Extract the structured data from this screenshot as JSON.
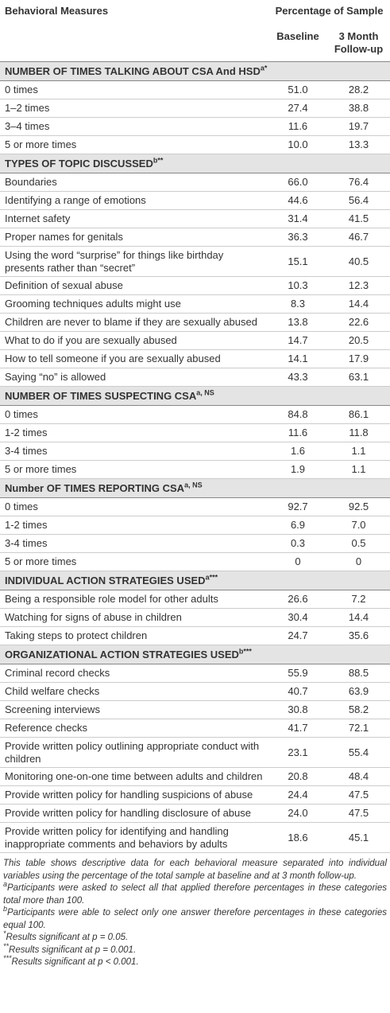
{
  "header": {
    "measure": "Behavioral Measures",
    "percentage": "Percentage of Sample",
    "baseline": "Baseline",
    "followup": "3 Month Follow-up"
  },
  "sections": [
    {
      "title": "NUMBER OF TIMES TALKING ABOUT CSA And HSD",
      "sup": "a*",
      "rows": [
        [
          "0 times",
          "51.0",
          "28.2"
        ],
        [
          "1–2 times",
          "27.4",
          "38.8"
        ],
        [
          "3–4 times",
          "11.6",
          "19.7"
        ],
        [
          "5 or more times",
          "10.0",
          "13.3"
        ]
      ]
    },
    {
      "title": "TYPES OF TOPIC DISCUSSED",
      "sup": "b**",
      "rows": [
        [
          "Boundaries",
          "66.0",
          "76.4"
        ],
        [
          "Identifying a range of emotions",
          "44.6",
          "56.4"
        ],
        [
          "Internet safety",
          "31.4",
          "41.5"
        ],
        [
          "Proper names for genitals",
          "36.3",
          "46.7"
        ],
        [
          "Using the word “surprise” for things like birthday presents rather than “secret”",
          "15.1",
          "40.5"
        ],
        [
          "Definition of sexual abuse",
          "10.3",
          "12.3"
        ],
        [
          "Grooming techniques adults might use",
          "8.3",
          "14.4"
        ],
        [
          "Children are never to blame if they are sexually abused",
          "13.8",
          "22.6"
        ],
        [
          "What to do if you are sexually abused",
          "14.7",
          "20.5"
        ],
        [
          "How to tell someone if you are sexually abused",
          "14.1",
          "17.9"
        ],
        [
          "Saying “no” is allowed",
          "43.3",
          "63.1"
        ]
      ]
    },
    {
      "title": "NUMBER OF TIMES SUSPECTING CSA",
      "sup": "a, NS",
      "rows": [
        [
          "0 times",
          "84.8",
          "86.1"
        ],
        [
          "1-2 times",
          "11.6",
          "11.8"
        ],
        [
          "3-4 times",
          "1.6",
          "1.1"
        ],
        [
          "5 or more times",
          "1.9",
          "1.1"
        ]
      ]
    },
    {
      "title": "Number OF TIMES REPORTING CSA",
      "sup": "a, NS",
      "rows": [
        [
          "0 times",
          "92.7",
          "92.5"
        ],
        [
          "1-2 times",
          "6.9",
          "7.0"
        ],
        [
          "3-4 times",
          "0.3",
          "0.5"
        ],
        [
          "5 or more times",
          "0",
          "0"
        ]
      ]
    },
    {
      "title": "INDIVIDUAL ACTION STRATEGIES USED",
      "sup": "a***",
      "rows": [
        [
          "Being a responsible role model for other adults",
          "26.6",
          "7.2"
        ],
        [
          "Watching for signs of abuse in children",
          "30.4",
          "14.4"
        ],
        [
          "Taking steps to protect children",
          "24.7",
          "35.6"
        ]
      ]
    },
    {
      "title": "ORGANIZATIONAL ACTION STRATEGIES USED",
      "sup": "b***",
      "rows": [
        [
          "Criminal record checks",
          "55.9",
          "88.5"
        ],
        [
          "Child welfare checks",
          "40.7",
          "63.9"
        ],
        [
          "Screening interviews",
          "30.8",
          "58.2"
        ],
        [
          "Reference checks",
          "41.7",
          "72.1"
        ],
        [
          "Provide written policy outlining appropriate conduct with children",
          "23.1",
          "55.4"
        ],
        [
          "Monitoring one-on-one time between adults and children",
          "20.8",
          "48.4"
        ],
        [
          "Provide written policy for handling suspicions of abuse",
          "24.4",
          "47.5"
        ],
        [
          "Provide written policy for handling disclosure of abuse",
          "24.0",
          "47.5"
        ],
        [
          "Provide written policy for identifying and handling inappropriate comments and behaviors by adults",
          "18.6",
          "45.1"
        ]
      ]
    }
  ],
  "footnotes": [
    {
      "text": "This table shows descriptive data for each behavioral measure separated into individual variables using the percentage of the total sample at baseline and at 3 month follow-up."
    },
    {
      "mark": "a",
      "text": "Participants were asked to select all that applied therefore percentages in these categories total more than 100."
    },
    {
      "mark": "b",
      "text": "Participants were able to select only one answer therefore percentages in these categories equal 100."
    },
    {
      "mark": "*",
      "text": "Results significant at p = 0.05."
    },
    {
      "mark": "**",
      "text": "Results significant at p = 0.001."
    },
    {
      "mark": "***",
      "text": "Results significant at p < 0.001."
    }
  ]
}
